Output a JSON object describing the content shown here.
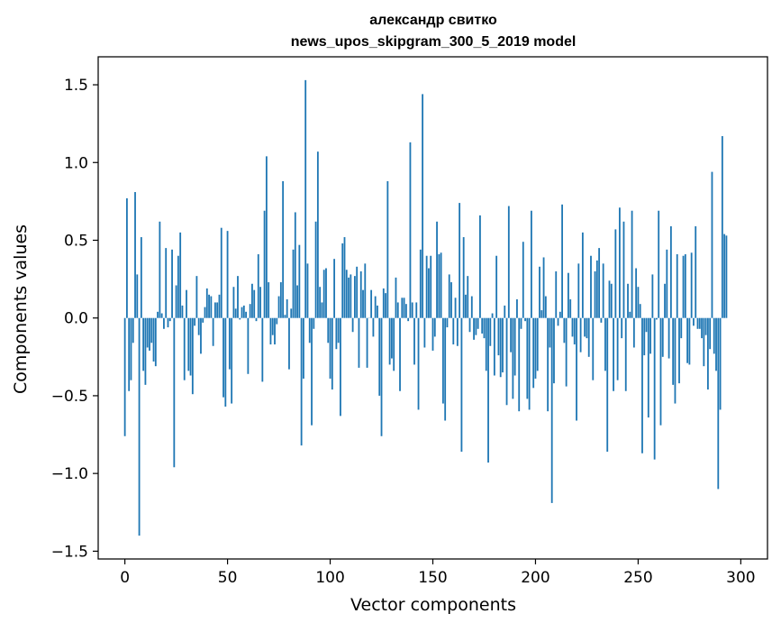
{
  "chart_data": {
    "type": "bar",
    "title_lines": [
      "александр свитко",
      "news_upos_skipgram_300_5_2019 model"
    ],
    "xlabel": "Vector components",
    "ylabel": "Components values",
    "xlim": [
      -13,
      313
    ],
    "ylim": [
      -1.55,
      1.68
    ],
    "xticks": [
      0,
      50,
      100,
      150,
      200,
      250,
      300
    ],
    "xtick_labels": [
      "0",
      "50",
      "100",
      "150",
      "200",
      "250",
      "300"
    ],
    "yticks": [
      -1.5,
      -1.0,
      -0.5,
      0.0,
      0.5,
      1.0,
      1.5
    ],
    "ytick_labels": [
      "−1.5",
      "−1.0",
      "−0.5",
      "0.0",
      "0.5",
      "1.0",
      "1.5"
    ],
    "grid": false,
    "bar_color": "#1f77b4",
    "series": [
      {
        "name": "components",
        "values": [
          -0.76,
          0.77,
          -0.47,
          -0.4,
          -0.16,
          0.81,
          0.28,
          -1.4,
          0.52,
          -0.34,
          -0.43,
          -0.19,
          -0.21,
          -0.16,
          -0.28,
          -0.31,
          0.04,
          0.62,
          0.03,
          -0.07,
          0.45,
          -0.06,
          -0.02,
          0.44,
          -0.96,
          0.21,
          0.4,
          0.55,
          0.08,
          -0.4,
          0.18,
          -0.34,
          -0.37,
          -0.49,
          -0.05,
          0.27,
          -0.11,
          -0.23,
          -0.03,
          0.07,
          0.19,
          0.15,
          0.14,
          -0.18,
          0.1,
          0.1,
          0.15,
          0.58,
          -0.51,
          -0.57,
          0.56,
          -0.33,
          -0.55,
          0.2,
          0.06,
          0.27,
          -0.01,
          0.07,
          0.08,
          0.04,
          -0.36,
          0.09,
          0.22,
          0.18,
          -0.02,
          0.41,
          0.2,
          -0.41,
          0.69,
          1.04,
          0.23,
          -0.17,
          -0.11,
          -0.17,
          -0.04,
          0.14,
          0.23,
          0.88,
          0.02,
          0.12,
          -0.33,
          0.06,
          0.44,
          0.68,
          0.21,
          0.47,
          -0.82,
          -0.39,
          1.53,
          0.35,
          -0.16,
          -0.69,
          -0.07,
          0.62,
          1.07,
          0.2,
          0.1,
          0.31,
          0.32,
          -0.16,
          -0.39,
          -0.46,
          0.38,
          -0.2,
          -0.16,
          -0.63,
          0.48,
          0.52,
          0.31,
          0.26,
          0.28,
          -0.09,
          0.27,
          0.33,
          -0.32,
          0.3,
          0.18,
          0.35,
          -0.32,
          0.0,
          0.18,
          -0.12,
          0.14,
          0.08,
          -0.5,
          -0.76,
          0.19,
          0.16,
          0.88,
          -0.3,
          -0.26,
          -0.34,
          0.26,
          0.1,
          -0.47,
          0.13,
          0.13,
          0.09,
          -0.02,
          1.13,
          0.1,
          -0.3,
          0.1,
          -0.59,
          0.44,
          1.44,
          -0.19,
          0.4,
          0.32,
          0.4,
          -0.21,
          -0.12,
          0.62,
          0.41,
          0.42,
          -0.55,
          -0.66,
          -0.06,
          0.28,
          0.23,
          -0.17,
          0.13,
          -0.18,
          0.74,
          -0.86,
          0.52,
          0.15,
          0.27,
          -0.09,
          0.14,
          -0.14,
          -0.11,
          -0.07,
          0.66,
          -0.1,
          -0.13,
          -0.34,
          -0.93,
          -0.18,
          0.03,
          -0.37,
          0.4,
          -0.24,
          -0.38,
          -0.35,
          0.08,
          -0.56,
          0.72,
          -0.22,
          -0.52,
          -0.37,
          0.12,
          -0.6,
          -0.07,
          0.49,
          -0.02,
          -0.52,
          -0.59,
          0.69,
          -0.45,
          -0.39,
          -0.34,
          0.33,
          0.05,
          0.39,
          0.14,
          -0.6,
          -0.19,
          -1.19,
          -0.42,
          0.3,
          -0.05,
          0.04,
          0.73,
          -0.16,
          -0.44,
          0.29,
          0.12,
          -0.12,
          -0.17,
          -0.66,
          0.35,
          -0.22,
          0.55,
          -0.12,
          -0.13,
          -0.25,
          0.4,
          -0.4,
          0.3,
          0.37,
          0.45,
          -0.03,
          0.35,
          -0.34,
          -0.86,
          0.24,
          0.22,
          -0.47,
          0.57,
          -0.4,
          0.71,
          -0.13,
          0.62,
          -0.47,
          0.22,
          0.04,
          0.69,
          -0.19,
          0.32,
          0.2,
          0.09,
          -0.87,
          -0.24,
          -0.09,
          -0.64,
          -0.23,
          0.28,
          -0.91,
          -0.01,
          0.69,
          -0.69,
          -0.25,
          0.22,
          0.44,
          -0.26,
          0.59,
          -0.43,
          -0.55,
          0.41,
          -0.42,
          -0.13,
          0.4,
          0.41,
          -0.29,
          -0.3,
          0.42,
          -0.05,
          0.59,
          -0.07,
          -0.07,
          -0.13,
          -0.31,
          -0.11,
          -0.46,
          -0.2,
          0.94,
          -0.23,
          -0.34,
          -1.1,
          -0.59,
          1.17,
          0.54,
          0.53
        ]
      }
    ]
  }
}
